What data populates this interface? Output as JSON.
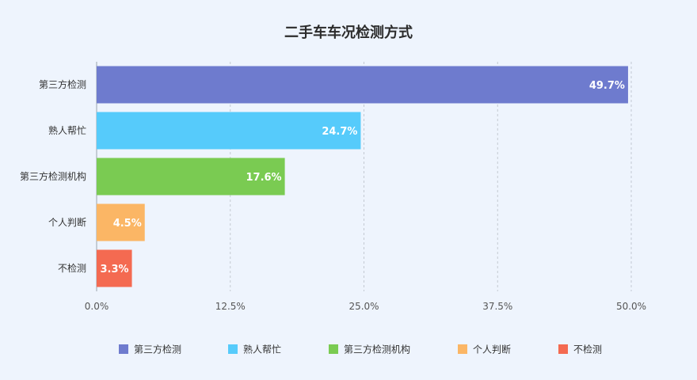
{
  "chart_data": {
    "type": "bar",
    "orientation": "horizontal",
    "title": "二手车车况检测方式",
    "categories": [
      "第三方检测",
      "熟人帮忙",
      "第三方检测机构",
      "个人判断",
      "不检测"
    ],
    "values": [
      49.7,
      24.7,
      17.6,
      4.5,
      3.3
    ],
    "value_labels": [
      "49.7%",
      "24.7%",
      "17.6%",
      "4.5%",
      "3.3%"
    ],
    "colors": [
      "#6e7bce",
      "#56cbfb",
      "#7acb52",
      "#fbb665",
      "#f46a51"
    ],
    "xlim": [
      0,
      50
    ],
    "x_ticks": [
      0,
      12.5,
      25,
      37.5,
      50
    ],
    "x_tick_labels": [
      "0.0%",
      "12.5%",
      "25.0%",
      "37.5%",
      "50.0%"
    ],
    "xlabel": "",
    "ylabel": "",
    "grid": "vertical dashed",
    "legend": {
      "position": "bottom",
      "entries": [
        "第三方检测",
        "熟人帮忙",
        "第三方检测机构",
        "个人判断",
        "不检测"
      ]
    }
  }
}
